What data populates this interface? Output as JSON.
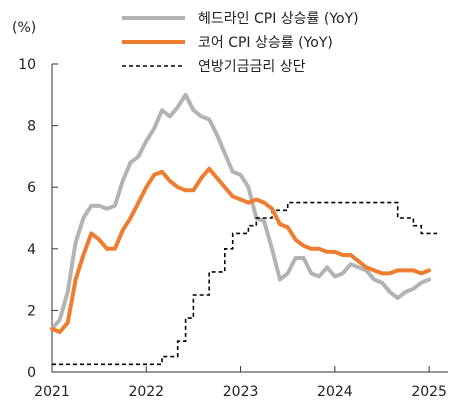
{
  "chart_data": {
    "type": "line",
    "unit_label": "(%)",
    "x_ticks": [
      "2021",
      "2022",
      "2023",
      "2024",
      "2025"
    ],
    "x_range": [
      2021.0,
      2025.2
    ],
    "y_ticks": [
      "0",
      "2",
      "4",
      "6",
      "8",
      "10"
    ],
    "ylim": [
      0,
      10
    ],
    "grid": false,
    "legend_position": "top-right",
    "series": [
      {
        "name": "헤드라인 CPI 상승률 (YoY)",
        "color": "#b3b3b3",
        "style": "solid",
        "x": [
          2021.0,
          2021.083,
          2021.167,
          2021.25,
          2021.333,
          2021.417,
          2021.5,
          2021.583,
          2021.667,
          2021.75,
          2021.833,
          2021.917,
          2022.0,
          2022.083,
          2022.167,
          2022.25,
          2022.333,
          2022.417,
          2022.5,
          2022.583,
          2022.667,
          2022.75,
          2022.833,
          2022.917,
          2023.0,
          2023.083,
          2023.167,
          2023.25,
          2023.333,
          2023.417,
          2023.5,
          2023.583,
          2023.667,
          2023.75,
          2023.833,
          2023.917,
          2024.0,
          2024.083,
          2024.167,
          2024.25,
          2024.333,
          2024.417,
          2024.5,
          2024.583,
          2024.667,
          2024.75,
          2024.833,
          2024.917,
          2025.0
        ],
        "values": [
          1.4,
          1.7,
          2.6,
          4.2,
          5.0,
          5.4,
          5.4,
          5.3,
          5.4,
          6.2,
          6.8,
          7.0,
          7.5,
          7.9,
          8.5,
          8.3,
          8.6,
          9.0,
          8.5,
          8.3,
          8.2,
          7.7,
          7.1,
          6.5,
          6.4,
          6.0,
          5.0,
          4.9,
          4.0,
          3.0,
          3.2,
          3.7,
          3.7,
          3.2,
          3.1,
          3.4,
          3.1,
          3.2,
          3.5,
          3.4,
          3.3,
          3.0,
          2.9,
          2.6,
          2.4,
          2.6,
          2.7,
          2.9,
          3.0
        ]
      },
      {
        "name": "코어 CPI 상승률 (YoY)",
        "color": "#ed7d31",
        "style": "solid",
        "x": [
          2021.0,
          2021.083,
          2021.167,
          2021.25,
          2021.333,
          2021.417,
          2021.5,
          2021.583,
          2021.667,
          2021.75,
          2021.833,
          2021.917,
          2022.0,
          2022.083,
          2022.167,
          2022.25,
          2022.333,
          2022.417,
          2022.5,
          2022.583,
          2022.667,
          2022.75,
          2022.833,
          2022.917,
          2023.0,
          2023.083,
          2023.167,
          2023.25,
          2023.333,
          2023.417,
          2023.5,
          2023.583,
          2023.667,
          2023.75,
          2023.833,
          2023.917,
          2024.0,
          2024.083,
          2024.167,
          2024.25,
          2024.333,
          2024.417,
          2024.5,
          2024.583,
          2024.667,
          2024.75,
          2024.833,
          2024.917,
          2025.0
        ],
        "values": [
          1.4,
          1.3,
          1.6,
          3.0,
          3.8,
          4.5,
          4.3,
          4.0,
          4.0,
          4.6,
          5.0,
          5.5,
          6.0,
          6.4,
          6.5,
          6.2,
          6.0,
          5.9,
          5.9,
          6.3,
          6.6,
          6.3,
          6.0,
          5.7,
          5.6,
          5.5,
          5.6,
          5.5,
          5.3,
          4.8,
          4.7,
          4.3,
          4.1,
          4.0,
          4.0,
          3.9,
          3.9,
          3.8,
          3.8,
          3.6,
          3.4,
          3.3,
          3.2,
          3.2,
          3.3,
          3.3,
          3.3,
          3.2,
          3.3
        ]
      },
      {
        "name": "연방기금금리 상단",
        "color": "#000000",
        "style": "dashed",
        "x": [
          2021.0,
          2022.167,
          2022.167,
          2022.333,
          2022.333,
          2022.417,
          2022.417,
          2022.5,
          2022.5,
          2022.667,
          2022.667,
          2022.833,
          2022.833,
          2022.917,
          2022.917,
          2023.083,
          2023.083,
          2023.167,
          2023.167,
          2023.333,
          2023.333,
          2023.5,
          2023.5,
          2024.667,
          2024.667,
          2024.833,
          2024.833,
          2024.917,
          2024.917,
          2025.083
        ],
        "values": [
          0.25,
          0.25,
          0.5,
          0.5,
          1.0,
          1.0,
          1.75,
          1.75,
          2.5,
          2.5,
          3.25,
          3.25,
          4.0,
          4.0,
          4.5,
          4.5,
          4.75,
          4.75,
          5.0,
          5.0,
          5.25,
          5.25,
          5.5,
          5.5,
          5.0,
          5.0,
          4.75,
          4.75,
          4.5,
          4.5
        ]
      }
    ]
  }
}
